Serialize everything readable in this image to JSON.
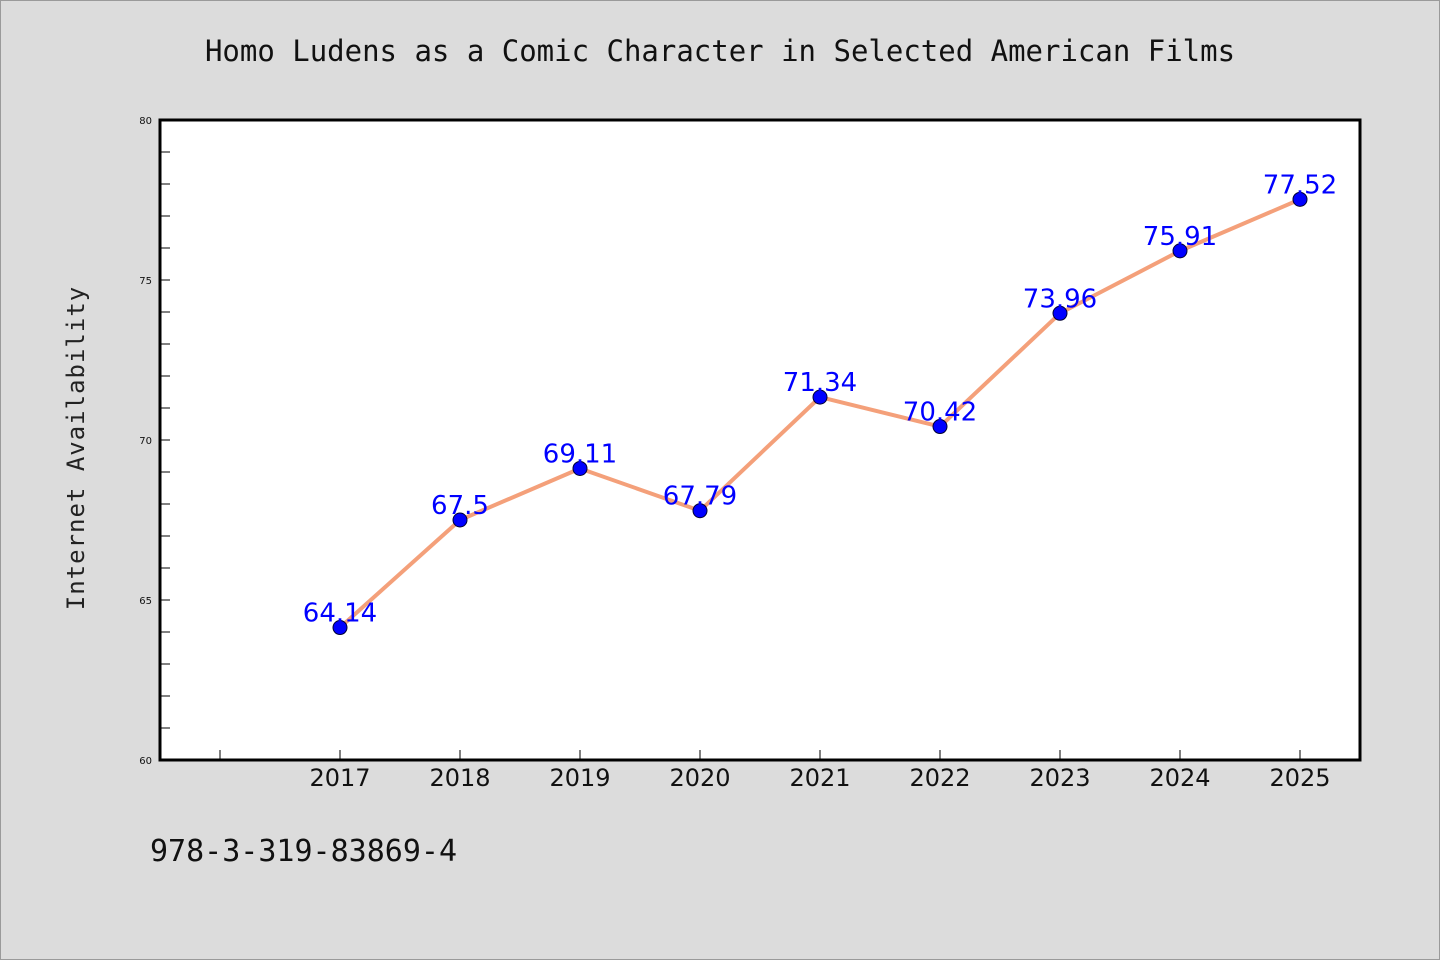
{
  "chart_data": {
    "type": "line",
    "title": "Homo Ludens as a Comic Character in Selected American Films",
    "xlabel": "",
    "ylabel": "Internet Availability",
    "categories": [
      "2017",
      "2018",
      "2019",
      "2020",
      "2021",
      "2022",
      "2023",
      "2024",
      "2025"
    ],
    "series": [
      {
        "values": [
          64.14,
          67.5,
          69.11,
          67.79,
          71.34,
          70.42,
          73.96,
          75.91,
          77.52
        ],
        "data_labels": [
          "64.14",
          "67.5",
          "69.11",
          "67.79",
          "71.34",
          "70.42",
          "73.96",
          "75.91",
          "77.52"
        ]
      }
    ],
    "ylim": [
      60,
      80
    ],
    "y_ticks": [
      60,
      65,
      70,
      75,
      80
    ],
    "line_color": "#f4a07a",
    "marker_color": "#0000ff",
    "data_label_color": "#0000ff",
    "background_color": "#dcdcdc",
    "plot_background": "#ffffff",
    "grid": false,
    "legend": "none"
  },
  "footer": {
    "code": "978-3-319-83869-4"
  }
}
